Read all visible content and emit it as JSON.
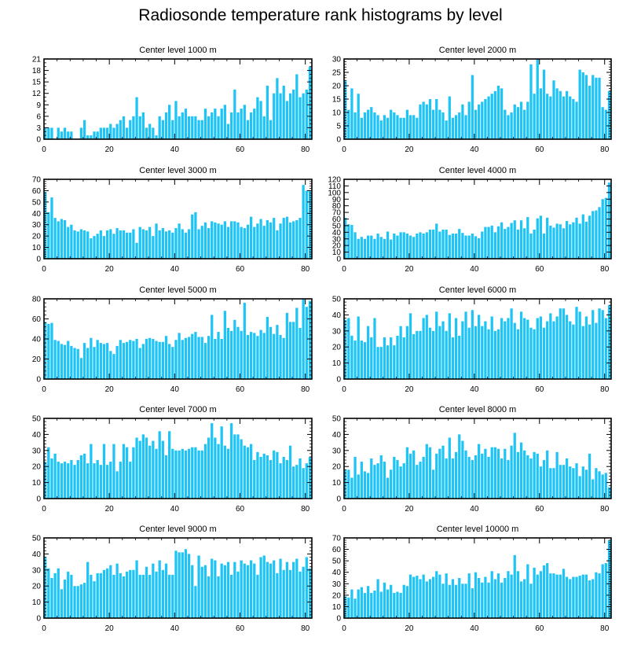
{
  "title": "Radiosonde temperature rank histograms by level",
  "colors": {
    "bar": "#1EC4F5",
    "bar_edge": "#ffffff",
    "axis": "#000000"
  },
  "chart_data": [
    {
      "type": "bar",
      "title": "Center level 1000 m",
      "xlim": [
        0,
        82
      ],
      "ylim": [
        0,
        21
      ],
      "xticks": [
        0,
        20,
        40,
        60,
        80
      ],
      "yticks": [
        0,
        3,
        6,
        9,
        12,
        15,
        18,
        21
      ],
      "yminor": 1,
      "values": [
        3,
        3,
        3,
        0,
        3,
        2,
        3,
        2,
        2,
        0,
        0,
        3,
        5,
        1,
        1,
        2,
        2,
        3,
        3,
        3,
        4,
        3,
        4,
        5,
        6,
        3,
        5,
        6,
        11,
        6,
        7,
        3,
        4,
        3,
        1,
        6,
        5,
        7,
        9,
        5,
        10,
        6,
        7,
        8,
        6,
        6,
        6,
        5,
        5,
        8,
        6,
        7,
        8,
        6,
        8,
        9,
        4,
        7,
        13,
        7,
        8,
        9,
        5,
        7,
        8,
        11,
        10,
        6,
        14,
        5,
        12,
        16,
        12,
        14,
        10,
        12,
        13,
        17,
        11,
        12,
        13,
        19
      ]
    },
    {
      "type": "bar",
      "title": "Center level 2000 m",
      "xlim": [
        0,
        82
      ],
      "ylim": [
        0,
        30
      ],
      "xticks": [
        0,
        20,
        40,
        60,
        80
      ],
      "yticks": [
        0,
        5,
        10,
        15,
        20,
        25,
        30
      ],
      "yminor": 1,
      "values": [
        22,
        11,
        19,
        10,
        17,
        8,
        10,
        11,
        12,
        10,
        9,
        7,
        9,
        8,
        11,
        10,
        9,
        8,
        8,
        11,
        9,
        9,
        8,
        13,
        14,
        13,
        15,
        11,
        15,
        11,
        10,
        7,
        16,
        8,
        9,
        10,
        13,
        9,
        14,
        24,
        11,
        13,
        14,
        15,
        16,
        17,
        18,
        20,
        19,
        11,
        9,
        10,
        13,
        12,
        14,
        11,
        14,
        28,
        17,
        30,
        19,
        26,
        17,
        16,
        22,
        19,
        18,
        16,
        18,
        16,
        15,
        14,
        26,
        25,
        24,
        20,
        24,
        23,
        23,
        12,
        11,
        18
      ]
    },
    {
      "type": "bar",
      "title": "Center level 3000 m",
      "xlim": [
        0,
        82
      ],
      "ylim": [
        0,
        70
      ],
      "xticks": [
        0,
        20,
        40,
        60,
        80
      ],
      "yticks": [
        0,
        10,
        20,
        30,
        40,
        50,
        60,
        70
      ],
      "yminor": 2,
      "values": [
        59,
        41,
        54,
        36,
        33,
        35,
        34,
        28,
        30,
        25,
        24,
        26,
        25,
        24,
        18,
        20,
        22,
        25,
        20,
        25,
        26,
        22,
        27,
        25,
        25,
        23,
        23,
        26,
        14,
        28,
        26,
        25,
        28,
        20,
        31,
        25,
        27,
        24,
        25,
        23,
        27,
        31,
        26,
        23,
        26,
        39,
        41,
        26,
        29,
        32,
        27,
        33,
        32,
        31,
        30,
        33,
        28,
        33,
        33,
        32,
        28,
        27,
        30,
        37,
        28,
        31,
        35,
        29,
        34,
        32,
        36,
        25,
        31,
        36,
        37,
        32,
        33,
        34,
        36,
        65,
        60,
        60
      ]
    },
    {
      "type": "bar",
      "title": "Center level 4000 m",
      "xlim": [
        0,
        82
      ],
      "ylim": [
        0,
        120
      ],
      "xticks": [
        0,
        20,
        40,
        60,
        80
      ],
      "yticks": [
        0,
        10,
        20,
        30,
        40,
        50,
        60,
        70,
        80,
        90,
        100,
        110,
        120
      ],
      "yminor": 0,
      "values": [
        62,
        52,
        51,
        40,
        30,
        33,
        30,
        35,
        35,
        30,
        38,
        33,
        30,
        41,
        29,
        38,
        35,
        40,
        40,
        38,
        35,
        33,
        38,
        40,
        38,
        40,
        44,
        44,
        53,
        41,
        44,
        44,
        36,
        38,
        38,
        45,
        39,
        35,
        35,
        38,
        34,
        31,
        41,
        48,
        48,
        50,
        40,
        49,
        55,
        45,
        48,
        54,
        58,
        44,
        58,
        46,
        63,
        38,
        44,
        61,
        65,
        38,
        62,
        50,
        47,
        53,
        52,
        46,
        57,
        52,
        55,
        62,
        53,
        67,
        56,
        65,
        72,
        73,
        78,
        90,
        92,
        115
      ]
    },
    {
      "type": "bar",
      "title": "Center level 5000 m",
      "xlim": [
        0,
        82
      ],
      "ylim": [
        0,
        80
      ],
      "xticks": [
        0,
        20,
        40,
        60,
        80
      ],
      "yticks": [
        0,
        20,
        40,
        60,
        80
      ],
      "yminor": 4,
      "values": [
        57,
        55,
        56,
        39,
        38,
        35,
        34,
        38,
        33,
        31,
        30,
        21,
        36,
        31,
        41,
        32,
        39,
        36,
        35,
        36,
        28,
        25,
        33,
        39,
        36,
        37,
        39,
        38,
        40,
        31,
        35,
        40,
        41,
        40,
        38,
        37,
        37,
        43,
        35,
        32,
        39,
        46,
        39,
        41,
        42,
        45,
        47,
        42,
        42,
        36,
        43,
        64,
        40,
        47,
        40,
        68,
        51,
        48,
        59,
        52,
        48,
        76,
        44,
        47,
        46,
        43,
        49,
        46,
        62,
        52,
        45,
        54,
        44,
        41,
        66,
        57,
        57,
        71,
        51,
        80,
        72,
        78
      ]
    },
    {
      "type": "bar",
      "title": "Center level 6000 m",
      "xlim": [
        0,
        82
      ],
      "ylim": [
        0,
        50
      ],
      "xticks": [
        0,
        20,
        40,
        60,
        80
      ],
      "yticks": [
        0,
        10,
        20,
        30,
        40,
        50
      ],
      "yminor": 2,
      "values": [
        37,
        38,
        27,
        24,
        39,
        24,
        23,
        33,
        26,
        38,
        20,
        20,
        26,
        21,
        26,
        21,
        27,
        33,
        26,
        33,
        41,
        28,
        30,
        30,
        38,
        40,
        32,
        30,
        42,
        33,
        36,
        30,
        41,
        26,
        38,
        27,
        36,
        42,
        32,
        43,
        33,
        40,
        33,
        36,
        31,
        39,
        30,
        31,
        38,
        36,
        38,
        44,
        35,
        31,
        42,
        38,
        37,
        32,
        31,
        38,
        39,
        32,
        36,
        41,
        36,
        39,
        44,
        44,
        40,
        36,
        34,
        45,
        42,
        33,
        39,
        34,
        43,
        35,
        44,
        43,
        38,
        46
      ]
    },
    {
      "type": "bar",
      "title": "Center level 7000 m",
      "xlim": [
        0,
        82
      ],
      "ylim": [
        0,
        50
      ],
      "xticks": [
        0,
        20,
        40,
        60,
        80
      ],
      "yticks": [
        0,
        10,
        20,
        30,
        40,
        50
      ],
      "yminor": 2,
      "values": [
        23,
        32,
        25,
        28,
        23,
        22,
        23,
        22,
        24,
        21,
        24,
        27,
        28,
        22,
        34,
        22,
        24,
        21,
        34,
        21,
        23,
        34,
        17,
        23,
        34,
        32,
        23,
        32,
        38,
        36,
        40,
        38,
        33,
        36,
        31,
        42,
        36,
        27,
        42,
        31,
        30,
        30,
        31,
        30,
        31,
        32,
        32,
        30,
        30,
        34,
        38,
        47,
        38,
        34,
        45,
        33,
        31,
        47,
        40,
        40,
        37,
        33,
        32,
        34,
        24,
        29,
        26,
        28,
        27,
        24,
        30,
        29,
        22,
        26,
        24,
        33,
        20,
        21,
        25,
        19,
        22,
        26
      ]
    },
    {
      "type": "bar",
      "title": "Center level 8000 m",
      "xlim": [
        0,
        82
      ],
      "ylim": [
        0,
        50
      ],
      "xticks": [
        0,
        20,
        40,
        60,
        80
      ],
      "yticks": [
        0,
        10,
        20,
        30,
        40,
        50
      ],
      "yminor": 2,
      "values": [
        18,
        18,
        13,
        26,
        15,
        23,
        17,
        16,
        25,
        21,
        22,
        27,
        23,
        13,
        18,
        26,
        24,
        20,
        22,
        32,
        28,
        30,
        21,
        23,
        26,
        34,
        32,
        18,
        28,
        31,
        33,
        25,
        38,
        25,
        29,
        40,
        36,
        30,
        26,
        24,
        27,
        34,
        28,
        31,
        26,
        32,
        32,
        31,
        25,
        31,
        24,
        33,
        41,
        29,
        35,
        30,
        27,
        25,
        29,
        28,
        20,
        24,
        30,
        19,
        19,
        29,
        21,
        21,
        25,
        20,
        19,
        22,
        14,
        20,
        18,
        28,
        12,
        19,
        17,
        15,
        16,
        7
      ]
    },
    {
      "type": "bar",
      "title": "Center level 9000 m",
      "xlim": [
        0,
        82
      ],
      "ylim": [
        0,
        50
      ],
      "xticks": [
        0,
        20,
        40,
        60,
        80
      ],
      "yticks": [
        0,
        10,
        20,
        30,
        40,
        50
      ],
      "yminor": 2,
      "values": [
        38,
        31,
        25,
        28,
        31,
        18,
        24,
        29,
        27,
        20,
        20,
        21,
        22,
        35,
        27,
        23,
        28,
        28,
        30,
        31,
        33,
        27,
        34,
        28,
        26,
        29,
        30,
        30,
        36,
        27,
        27,
        32,
        27,
        34,
        29,
        36,
        30,
        34,
        27,
        27,
        42,
        41,
        41,
        43,
        40,
        33,
        20,
        39,
        32,
        33,
        26,
        37,
        36,
        26,
        34,
        33,
        35,
        27,
        35,
        29,
        36,
        34,
        33,
        36,
        34,
        27,
        38,
        39,
        35,
        34,
        36,
        28,
        37,
        30,
        35,
        30,
        35,
        37,
        29,
        32,
        38,
        31
      ]
    },
    {
      "type": "bar",
      "title": "Center level 10000 m",
      "xlim": [
        0,
        82
      ],
      "ylim": [
        0,
        70
      ],
      "xticks": [
        0,
        20,
        40,
        60,
        80
      ],
      "yticks": [
        0,
        10,
        20,
        30,
        40,
        50,
        60,
        70
      ],
      "yminor": 2,
      "values": [
        19,
        18,
        25,
        17,
        25,
        27,
        22,
        28,
        22,
        24,
        34,
        23,
        31,
        25,
        29,
        22,
        23,
        22,
        29,
        28,
        38,
        36,
        37,
        34,
        38,
        32,
        34,
        36,
        41,
        38,
        30,
        39,
        29,
        34,
        29,
        35,
        30,
        30,
        39,
        26,
        40,
        35,
        31,
        36,
        31,
        41,
        34,
        39,
        31,
        35,
        41,
        38,
        55,
        41,
        32,
        34,
        47,
        30,
        44,
        38,
        41,
        46,
        48,
        39,
        39,
        38,
        38,
        43,
        36,
        34,
        36,
        36,
        37,
        38,
        38,
        33,
        34,
        40,
        39,
        47,
        48,
        68
      ]
    }
  ]
}
